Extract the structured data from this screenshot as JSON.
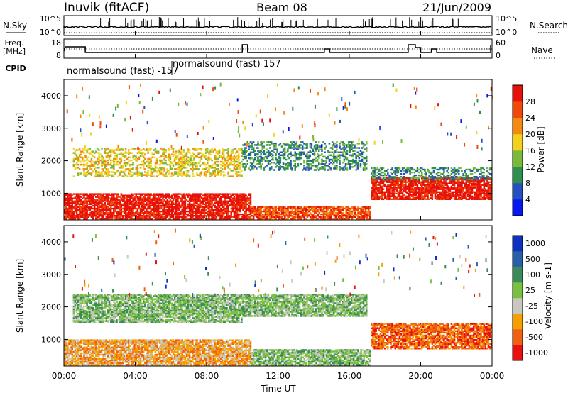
{
  "header": {
    "station": "Inuvik (fitACF)",
    "beam": "Beam 08",
    "date": "21/Jun/2009"
  },
  "summary_panels": {
    "nsky": {
      "label": "N.Sky",
      "tick_top": "10^5",
      "tick_bottom": "10^0",
      "right_label": "N.Search",
      "right_tick_top": "10^5",
      "right_tick_bottom": "10^0"
    },
    "freq": {
      "label_line1": "Freq.",
      "label_line2": "[MHz]",
      "tick_top": "18",
      "tick_bottom": "8",
      "right_label": "Nave",
      "right_tick_top": "60",
      "right_tick_bottom": "0"
    },
    "cpid": {
      "label": "CPID",
      "segments": [
        "normalsound (fast) -157",
        "normalsound (fast) 157"
      ]
    }
  },
  "x_axis": {
    "label": "Time UT",
    "ticks": [
      "00:00",
      "04:00",
      "08:00",
      "12:00",
      "16:00",
      "20:00",
      "00:00"
    ]
  },
  "chart_data": [
    {
      "type": "heatmap",
      "panel": "power",
      "ylabel": "Slant Range [km]",
      "yticks": [
        1000,
        2000,
        3000,
        4000
      ],
      "ylim": [
        180,
        4500
      ],
      "xlim_hours": [
        0,
        24
      ],
      "colorbar": {
        "label": "Power [dB]",
        "ticks": [
          4,
          8,
          12,
          16,
          20,
          24,
          28
        ],
        "colors": [
          "#0a18f0",
          "#2450c0",
          "#2f8f4f",
          "#7ab93a",
          "#f2d21a",
          "#f58a10",
          "#f04a0a",
          "#e8100a"
        ]
      },
      "regions": [
        {
          "t0": 0.0,
          "t1": 10.5,
          "r0": 200,
          "r1": 1000,
          "level": 28
        },
        {
          "t0": 10.5,
          "t1": 17.2,
          "r0": 200,
          "r1": 600,
          "level": 24
        },
        {
          "t0": 17.2,
          "t1": 24.0,
          "r0": 800,
          "r1": 1500,
          "level": 28
        },
        {
          "t0": 0.5,
          "t1": 10.0,
          "r0": 1500,
          "r1": 2400,
          "level": 16
        },
        {
          "t0": 10.0,
          "t1": 17.0,
          "r0": 1700,
          "r1": 2600,
          "level": 8
        },
        {
          "t0": 17.2,
          "t1": 24.0,
          "r0": 1400,
          "r1": 1800,
          "level": 8
        }
      ]
    },
    {
      "type": "heatmap",
      "panel": "velocity",
      "ylabel": "Slant Range [km]",
      "yticks": [
        1000,
        2000,
        3000,
        4000
      ],
      "ylim": [
        180,
        4500
      ],
      "xlim_hours": [
        0,
        24
      ],
      "colorbar": {
        "label": "Velocity [m s-1]",
        "ticks": [
          1000,
          500,
          100,
          25,
          -25,
          -100,
          -500,
          -1000
        ],
        "colors": [
          "#1030c0",
          "#2860a8",
          "#3a8a5a",
          "#7ac040",
          "#c8c8c0",
          "#f5a000",
          "#f06010",
          "#e81010"
        ]
      },
      "regions": [
        {
          "t0": 0.0,
          "t1": 10.5,
          "r0": 200,
          "r1": 1000,
          "level": -100
        },
        {
          "t0": 10.5,
          "t1": 17.2,
          "r0": 200,
          "r1": 700,
          "level": 25
        },
        {
          "t0": 17.2,
          "t1": 24.0,
          "r0": 700,
          "r1": 1500,
          "level": -500
        },
        {
          "t0": 0.5,
          "t1": 10.0,
          "r0": 1500,
          "r1": 2400,
          "level": 25
        },
        {
          "t0": 10.0,
          "t1": 17.0,
          "r0": 1700,
          "r1": 2400,
          "level": 25
        }
      ]
    }
  ]
}
